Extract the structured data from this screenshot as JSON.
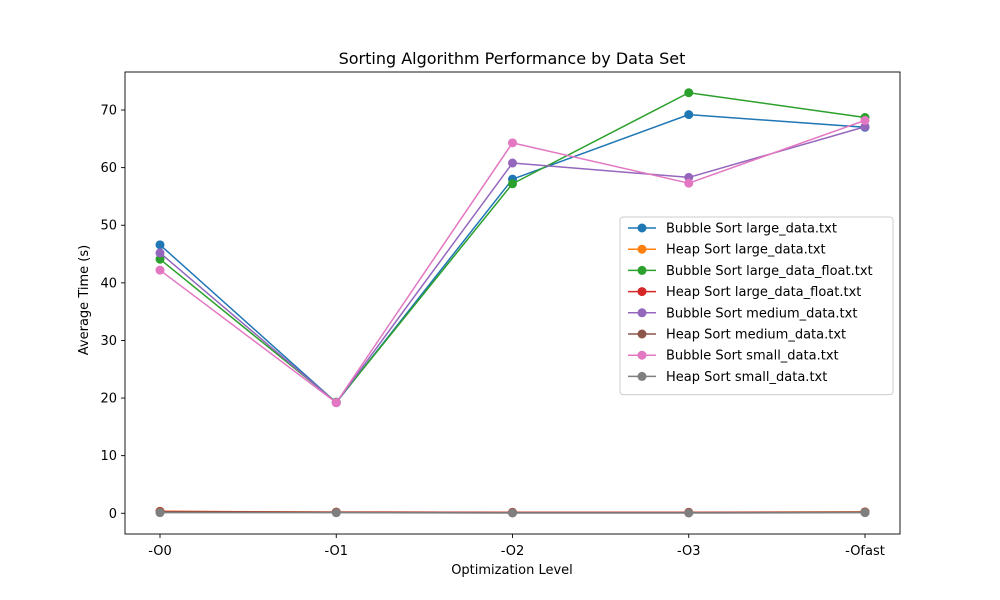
{
  "chart_data": {
    "type": "line",
    "title": "Sorting Algorithm Performance by Data Set",
    "xlabel": "Optimization Level",
    "ylabel": "Average Time (s)",
    "categories": [
      "-O0",
      "-O1",
      "-O2",
      "-O3",
      "-Ofast"
    ],
    "ylim": [
      -3.6,
      76.6
    ],
    "yticks": [
      0,
      10,
      20,
      30,
      40,
      50,
      60,
      70
    ],
    "ytick_labels": [
      "0",
      "10",
      "20",
      "30",
      "40",
      "50",
      "60",
      "70"
    ],
    "grid": false,
    "legend_position": "center-right",
    "series": [
      {
        "name": "Bubble Sort large_data.txt",
        "color": "#1f77b4",
        "values": [
          46.6,
          19.2,
          58.0,
          69.2,
          67.0
        ]
      },
      {
        "name": "Heap Sort large_data.txt",
        "color": "#ff7f0e",
        "values": [
          0.35,
          0.2,
          0.15,
          0.15,
          0.25
        ]
      },
      {
        "name": "Bubble Sort large_data_float.txt",
        "color": "#2ca02c",
        "values": [
          44.1,
          19.3,
          57.2,
          73.0,
          68.7
        ]
      },
      {
        "name": "Heap Sort large_data_float.txt",
        "color": "#d62728",
        "values": [
          0.3,
          0.2,
          0.15,
          0.15,
          0.2
        ]
      },
      {
        "name": "Bubble Sort medium_data.txt",
        "color": "#9467bd",
        "values": [
          45.2,
          19.2,
          60.8,
          58.3,
          67.1
        ]
      },
      {
        "name": "Heap Sort medium_data.txt",
        "color": "#8c564b",
        "values": [
          0.25,
          0.15,
          0.1,
          0.1,
          0.2
        ]
      },
      {
        "name": "Bubble Sort small_data.txt",
        "color": "#e377c2",
        "values": [
          42.2,
          19.2,
          64.3,
          57.3,
          68.2
        ]
      },
      {
        "name": "Heap Sort small_data.txt",
        "color": "#7f7f7f",
        "values": [
          0.1,
          0.1,
          0.05,
          0.05,
          0.1
        ]
      }
    ]
  }
}
